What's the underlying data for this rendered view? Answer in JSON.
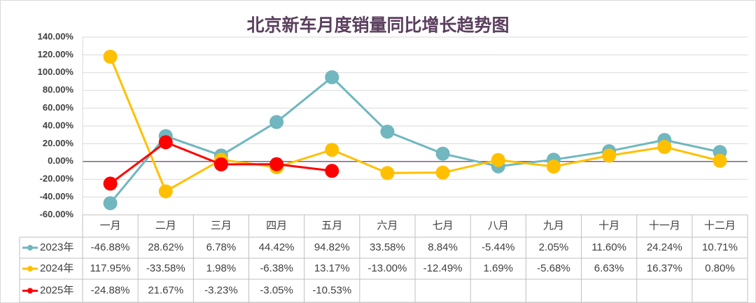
{
  "chart_data": {
    "type": "line",
    "title": "北京新车月度销量同比增长趋势图",
    "categories": [
      "一月",
      "二月",
      "三月",
      "四月",
      "五月",
      "六月",
      "七月",
      "八月",
      "九月",
      "十月",
      "十一月",
      "十二月"
    ],
    "series": [
      {
        "name": "2023年",
        "color": "#70b7bf",
        "values": [
          -46.88,
          28.62,
          6.78,
          44.42,
          94.82,
          33.58,
          8.84,
          -5.44,
          2.05,
          11.6,
          24.24,
          10.71
        ],
        "value_labels": [
          "-46.88%",
          "28.62%",
          "6.78%",
          "44.42%",
          "94.82%",
          "33.58%",
          "8.84%",
          "-5.44%",
          "2.05%",
          "11.60%",
          "24.24%",
          "10.71%"
        ]
      },
      {
        "name": "2024年",
        "color": "#ffc000",
        "values": [
          117.95,
          -33.58,
          1.98,
          -6.38,
          13.17,
          -13.0,
          -12.49,
          1.69,
          -5.68,
          6.63,
          16.37,
          0.8
        ],
        "value_labels": [
          "117.95%",
          "-33.58%",
          "1.98%",
          "-6.38%",
          "13.17%",
          "-13.00%",
          "-12.49%",
          "1.69%",
          "-5.68%",
          "6.63%",
          "16.37%",
          "0.80%"
        ]
      },
      {
        "name": "2025年",
        "color": "#ff0000",
        "values": [
          -24.88,
          21.67,
          -3.23,
          -3.05,
          -10.53,
          null,
          null,
          null,
          null,
          null,
          null,
          null
        ],
        "value_labels": [
          "-24.88%",
          "21.67%",
          "-3.23%",
          "-3.05%",
          "-10.53%",
          null,
          null,
          null,
          null,
          null,
          null,
          null
        ]
      }
    ],
    "ylim": [
      -60,
      140
    ],
    "yticks": [
      {
        "value": -60,
        "label": "-60.00%"
      },
      {
        "value": -40,
        "label": "-40.00%"
      },
      {
        "value": -20,
        "label": "-20.00%"
      },
      {
        "value": 0,
        "label": "0.00%"
      },
      {
        "value": 20,
        "label": "20.00%"
      },
      {
        "value": 40,
        "label": "40.00%"
      },
      {
        "value": 60,
        "label": "60.00%"
      },
      {
        "value": 80,
        "label": "80.00%"
      },
      {
        "value": 100,
        "label": "100.00%"
      },
      {
        "value": 120,
        "label": "120.00%"
      },
      {
        "value": 140,
        "label": "140.00%"
      }
    ],
    "grid": true
  }
}
